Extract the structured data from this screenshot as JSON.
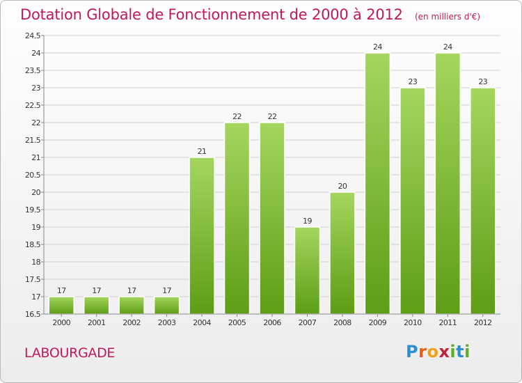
{
  "title": "Dotation Globale de Fonctionnement de 2000 à 2012",
  "unit_note": "(en milliers d'€)",
  "commune": "LABOURGADE",
  "logo": {
    "letters": [
      "P",
      "r",
      "o",
      "x",
      "i",
      "t",
      "i"
    ],
    "colors": [
      "#2b8fd6",
      "#e85d1a",
      "#f0a018",
      "#c41f3d",
      "#5cae2a",
      "#2b8fd6",
      "#5cae2a"
    ]
  },
  "colors": {
    "title": "#c2185b",
    "bar_light": "#a4d65e",
    "bar_dark": "#5e9d15",
    "grid": "#cfcfcf"
  },
  "chart_data": {
    "type": "bar",
    "title": "Dotation Globale de Fonctionnement de 2000 à 2012",
    "xlabel": "",
    "ylabel": "",
    "ylim": [
      16.5,
      24.5
    ],
    "grid": true,
    "yticks": [
      "16.5",
      "17",
      "17.5",
      "18",
      "18.5",
      "19",
      "19.5",
      "20",
      "20.5",
      "21",
      "21.5",
      "22",
      "22.5",
      "23",
      "23.5",
      "24",
      "24.5"
    ],
    "categories": [
      "2000",
      "2001",
      "2002",
      "2003",
      "2004",
      "2005",
      "2006",
      "2007",
      "2008",
      "2009",
      "2010",
      "2011",
      "2012"
    ],
    "values": [
      17,
      17,
      17,
      17,
      21,
      22,
      22,
      19,
      20,
      24,
      23,
      24,
      23
    ],
    "data_labels": [
      "17",
      "17",
      "17",
      "17",
      "21",
      "22",
      "22",
      "19",
      "20",
      "24",
      "23",
      "24",
      "23"
    ]
  }
}
